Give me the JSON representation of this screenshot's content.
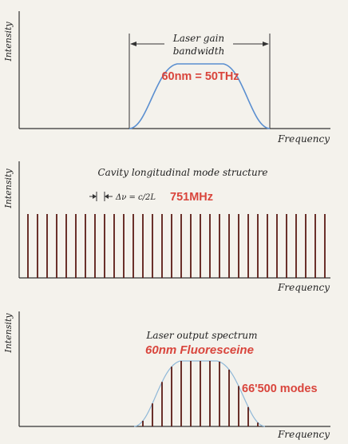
{
  "panel_gain": {
    "y_axis": "Intensity",
    "x_axis": "Frequency",
    "bandwidth_label_line1": "Laser gain",
    "bandwidth_label_line2": "bandwidth",
    "annotation": "60nm = 50THz",
    "curve_color": "#5b8fd0"
  },
  "panel_cavity": {
    "y_axis": "Intensity",
    "x_axis": "Frequency",
    "title": "Cavity longitudinal mode structure",
    "spacing_label": "Δν = c/2L",
    "annotation": "751MHz",
    "mode_count": 32,
    "line_color": "#5a1a14"
  },
  "panel_output": {
    "y_axis": "Intensity",
    "x_axis": "Frequency",
    "title": "Laser output spectrum",
    "annotation_title": "60nm Fluoresceine",
    "annotation_modes": "66'500 modes",
    "envelope_color": "#8fb8d8",
    "line_color": "#5a1a14"
  },
  "colors": {
    "background": "#f4f2ec",
    "axis": "#333333",
    "accent_red": "#d9453c"
  }
}
